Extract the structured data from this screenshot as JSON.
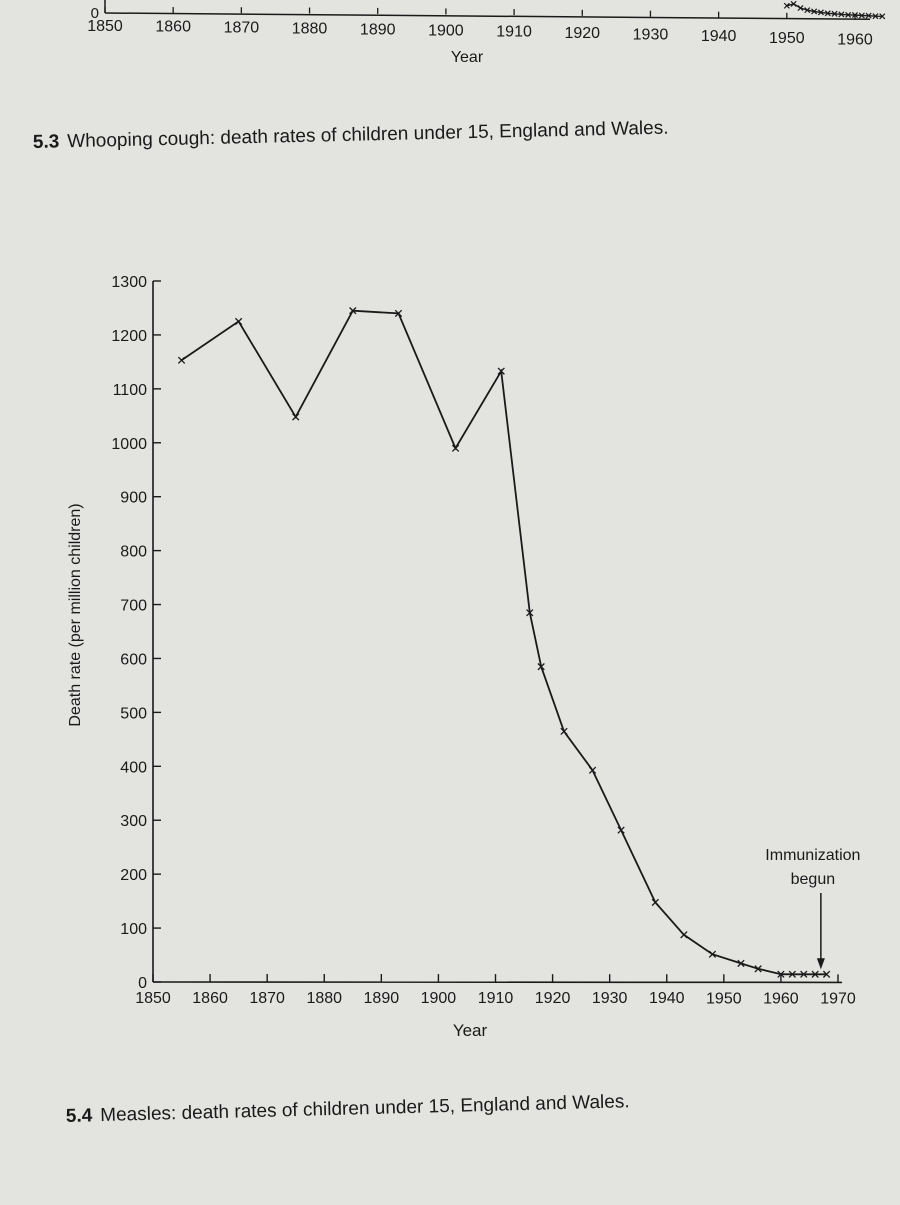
{
  "chart_data": [
    {
      "type": "line",
      "partial": true,
      "xlabel": "Year",
      "ylabel": "",
      "x_ticks": [
        1850,
        1860,
        1870,
        1880,
        1890,
        1900,
        1910,
        1920,
        1930,
        1940,
        1950,
        1960
      ],
      "y_ticks": [
        0
      ],
      "x": [
        1950,
        1951,
        1952,
        1953,
        1954,
        1955,
        1956,
        1957,
        1958,
        1959,
        1960,
        1961,
        1962,
        1963,
        1964
      ],
      "values": [
        25,
        30,
        20,
        15,
        12,
        10,
        8,
        7,
        6,
        5,
        5,
        4,
        4,
        3,
        3
      ]
    },
    {
      "type": "line",
      "xlabel": "Year",
      "ylabel": "Death rate (per million children)",
      "xlim": [
        1850,
        1970
      ],
      "ylim": [
        0,
        1300
      ],
      "x_ticks": [
        1850,
        1860,
        1870,
        1880,
        1890,
        1900,
        1910,
        1920,
        1930,
        1940,
        1950,
        1960,
        1970
      ],
      "y_ticks": [
        0,
        100,
        200,
        300,
        400,
        500,
        600,
        700,
        800,
        900,
        1000,
        1100,
        1200,
        1300
      ],
      "x": [
        1855,
        1865,
        1875,
        1885,
        1893,
        1903,
        1911,
        1916,
        1918,
        1922,
        1927,
        1932,
        1938,
        1943,
        1948,
        1953,
        1956,
        1960,
        1962,
        1964,
        1966,
        1968
      ],
      "values": [
        1153,
        1225,
        1048,
        1245,
        1240,
        990,
        1133,
        685,
        585,
        465,
        393,
        282,
        148,
        88,
        52,
        35,
        25,
        15,
        15,
        15,
        15,
        15
      ],
      "annotation": {
        "lines": [
          "Immunization",
          "begun"
        ],
        "x": 1967,
        "y": 15
      }
    }
  ],
  "captions": {
    "fig3": {
      "number": "5.3",
      "text": "Whooping cough: death rates of children under 15, England and Wales."
    },
    "fig4": {
      "number": "5.4",
      "text": "Measles: death rates of children under 15, England and Wales."
    }
  }
}
